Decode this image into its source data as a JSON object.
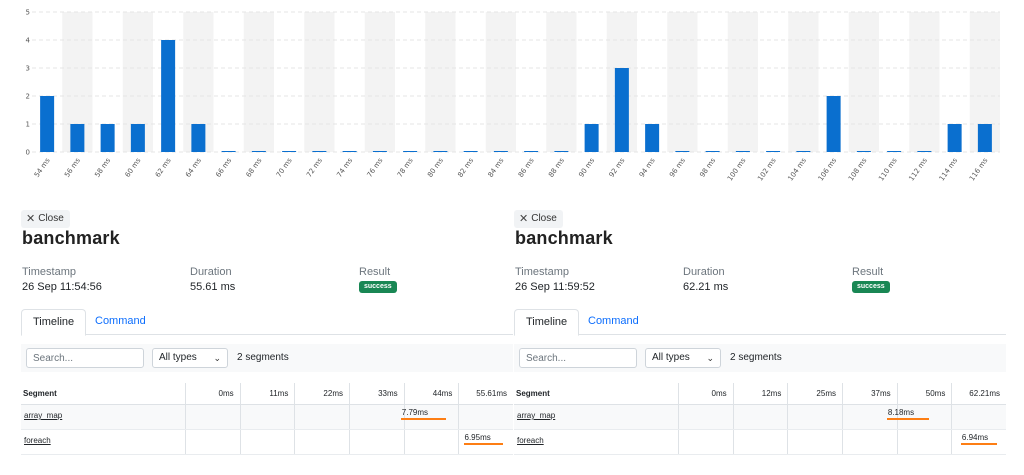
{
  "chart_data": {
    "type": "bar",
    "categories": [
      "54 ms",
      "56 ms",
      "58 ms",
      "60 ms",
      "62 ms",
      "64 ms",
      "66 ms",
      "68 ms",
      "70 ms",
      "72 ms",
      "74 ms",
      "76 ms",
      "78 ms",
      "80 ms",
      "82 ms",
      "84 ms",
      "86 ms",
      "88 ms",
      "90 ms",
      "92 ms",
      "94 ms",
      "96 ms",
      "98 ms",
      "100 ms",
      "102 ms",
      "104 ms",
      "106 ms",
      "108 ms",
      "110 ms",
      "112 ms",
      "114 ms",
      "116 ms"
    ],
    "values": [
      2,
      1,
      1,
      1,
      4,
      1,
      0,
      0,
      0,
      0,
      0,
      0,
      0,
      0,
      0,
      0,
      0,
      0,
      1,
      3,
      1,
      0,
      0,
      0,
      0,
      0,
      2,
      0,
      0,
      0,
      1,
      1
    ],
    "ylim": [
      0,
      5
    ],
    "yticks": [
      "0",
      "1",
      "2",
      "3",
      "4",
      "5"
    ],
    "grid": true,
    "colors": {
      "bar": "#0a6fcf",
      "band": "#f3f3f3",
      "grid": "#e4e4e4"
    }
  },
  "panels": [
    {
      "close_label": "Close",
      "title": "banchmark",
      "timestamp_label": "Timestamp",
      "timestamp": "26 Sep 11:54:56",
      "duration_label": "Duration",
      "duration": "55.61 ms",
      "result_label": "Result",
      "result": "success",
      "tab_timeline": "Timeline",
      "tab_command": "Command",
      "search_placeholder": "Search...",
      "type_filter": "All types",
      "segment_count": "2 segments",
      "col_segment": "Segment",
      "ticks": [
        "0ms",
        "11ms",
        "22ms",
        "33ms",
        "44ms",
        "55.61ms"
      ],
      "segments": [
        {
          "name": "array_map",
          "label": "7.79ms",
          "start": 37.5,
          "duration": 7.79
        },
        {
          "name": "foreach",
          "label": "6.95ms",
          "start": 48.4,
          "duration": 6.95
        }
      ],
      "total": 55.61
    },
    {
      "close_label": "Close",
      "title": "banchmark",
      "timestamp_label": "Timestamp",
      "timestamp": "26 Sep 11:59:52",
      "duration_label": "Duration",
      "duration": "62.21 ms",
      "result_label": "Result",
      "result": "success",
      "tab_timeline": "Timeline",
      "tab_command": "Command",
      "search_placeholder": "Search...",
      "type_filter": "All types",
      "segment_count": "2 segments",
      "col_segment": "Segment",
      "ticks": [
        "0ms",
        "12ms",
        "25ms",
        "37ms",
        "50ms",
        "62.21ms"
      ],
      "segments": [
        {
          "name": "array_map",
          "label": "8.18ms",
          "start": 40.6,
          "duration": 8.18
        },
        {
          "name": "foreach",
          "label": "6.94ms",
          "start": 55.0,
          "duration": 6.94
        }
      ],
      "total": 62.21
    }
  ],
  "colors": {
    "accent": "#0d6efd",
    "success": "#198754",
    "timeline_bar": "#fd7e14"
  }
}
